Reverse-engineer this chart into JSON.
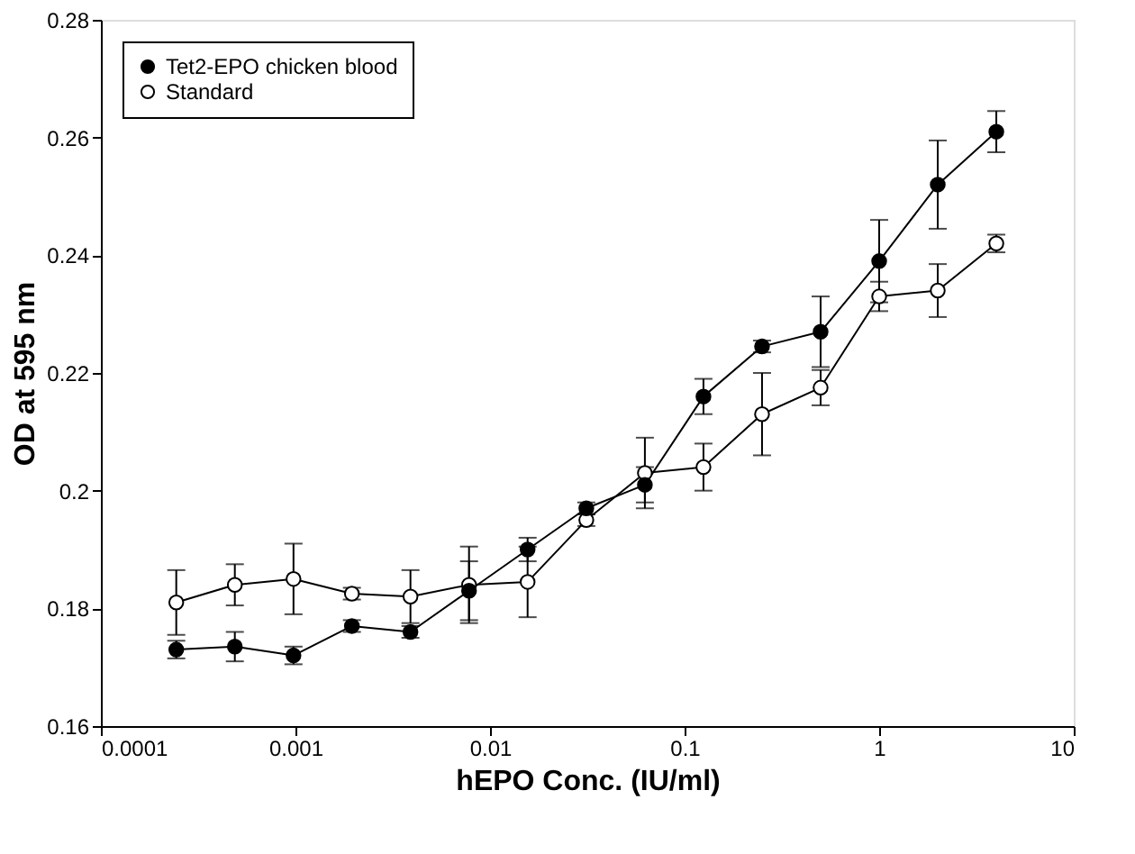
{
  "chart_data": {
    "type": "line",
    "xlabel": "hEPO  Conc. (IU/ml)",
    "ylabel": "OD at 595 nm",
    "x": [
      0.000244,
      0.000488,
      0.000977,
      0.00195,
      0.0039,
      0.0078,
      0.0156,
      0.03125,
      0.0625,
      0.125,
      0.25,
      0.5,
      1,
      2,
      4
    ],
    "series": [
      {
        "name": "Tet2-EPO chicken blood",
        "color": "#000000",
        "values": [
          0.173,
          0.1735,
          0.172,
          0.177,
          0.176,
          0.183,
          0.19,
          0.197,
          0.201,
          0.216,
          0.2245,
          0.227,
          0.239,
          0.252,
          0.261
        ],
        "errors": [
          0.0015,
          0.0025,
          0.0015,
          0.001,
          0.001,
          0.005,
          0.002,
          0.001,
          0.003,
          0.003,
          0.001,
          0.006,
          0.007,
          0.0075,
          0.0035
        ]
      },
      {
        "name": "Standard",
        "color": "#000000",
        "values": [
          0.181,
          0.184,
          0.185,
          0.1825,
          0.182,
          0.184,
          0.1845,
          0.195,
          0.203,
          0.204,
          0.213,
          0.2175,
          0.233,
          0.234,
          0.242
        ],
        "errors": [
          0.0055,
          0.0035,
          0.006,
          0.001,
          0.0045,
          0.0065,
          0.006,
          0.001,
          0.006,
          0.004,
          0.007,
          0.003,
          0.0025,
          0.0045,
          0.0015
        ]
      }
    ],
    "log": "x",
    "xlim": [
      0.0001,
      10
    ],
    "xticks": [
      0.0001,
      0.001,
      0.01,
      0.1,
      1,
      10
    ],
    "ylim": [
      0.16,
      0.28
    ],
    "yticks": [
      0.16,
      0.18,
      0.2,
      0.22,
      0.24,
      0.26,
      0.28
    ],
    "grid": false,
    "legend": "top left",
    "marker": "circle",
    "line_style": "solid"
  }
}
